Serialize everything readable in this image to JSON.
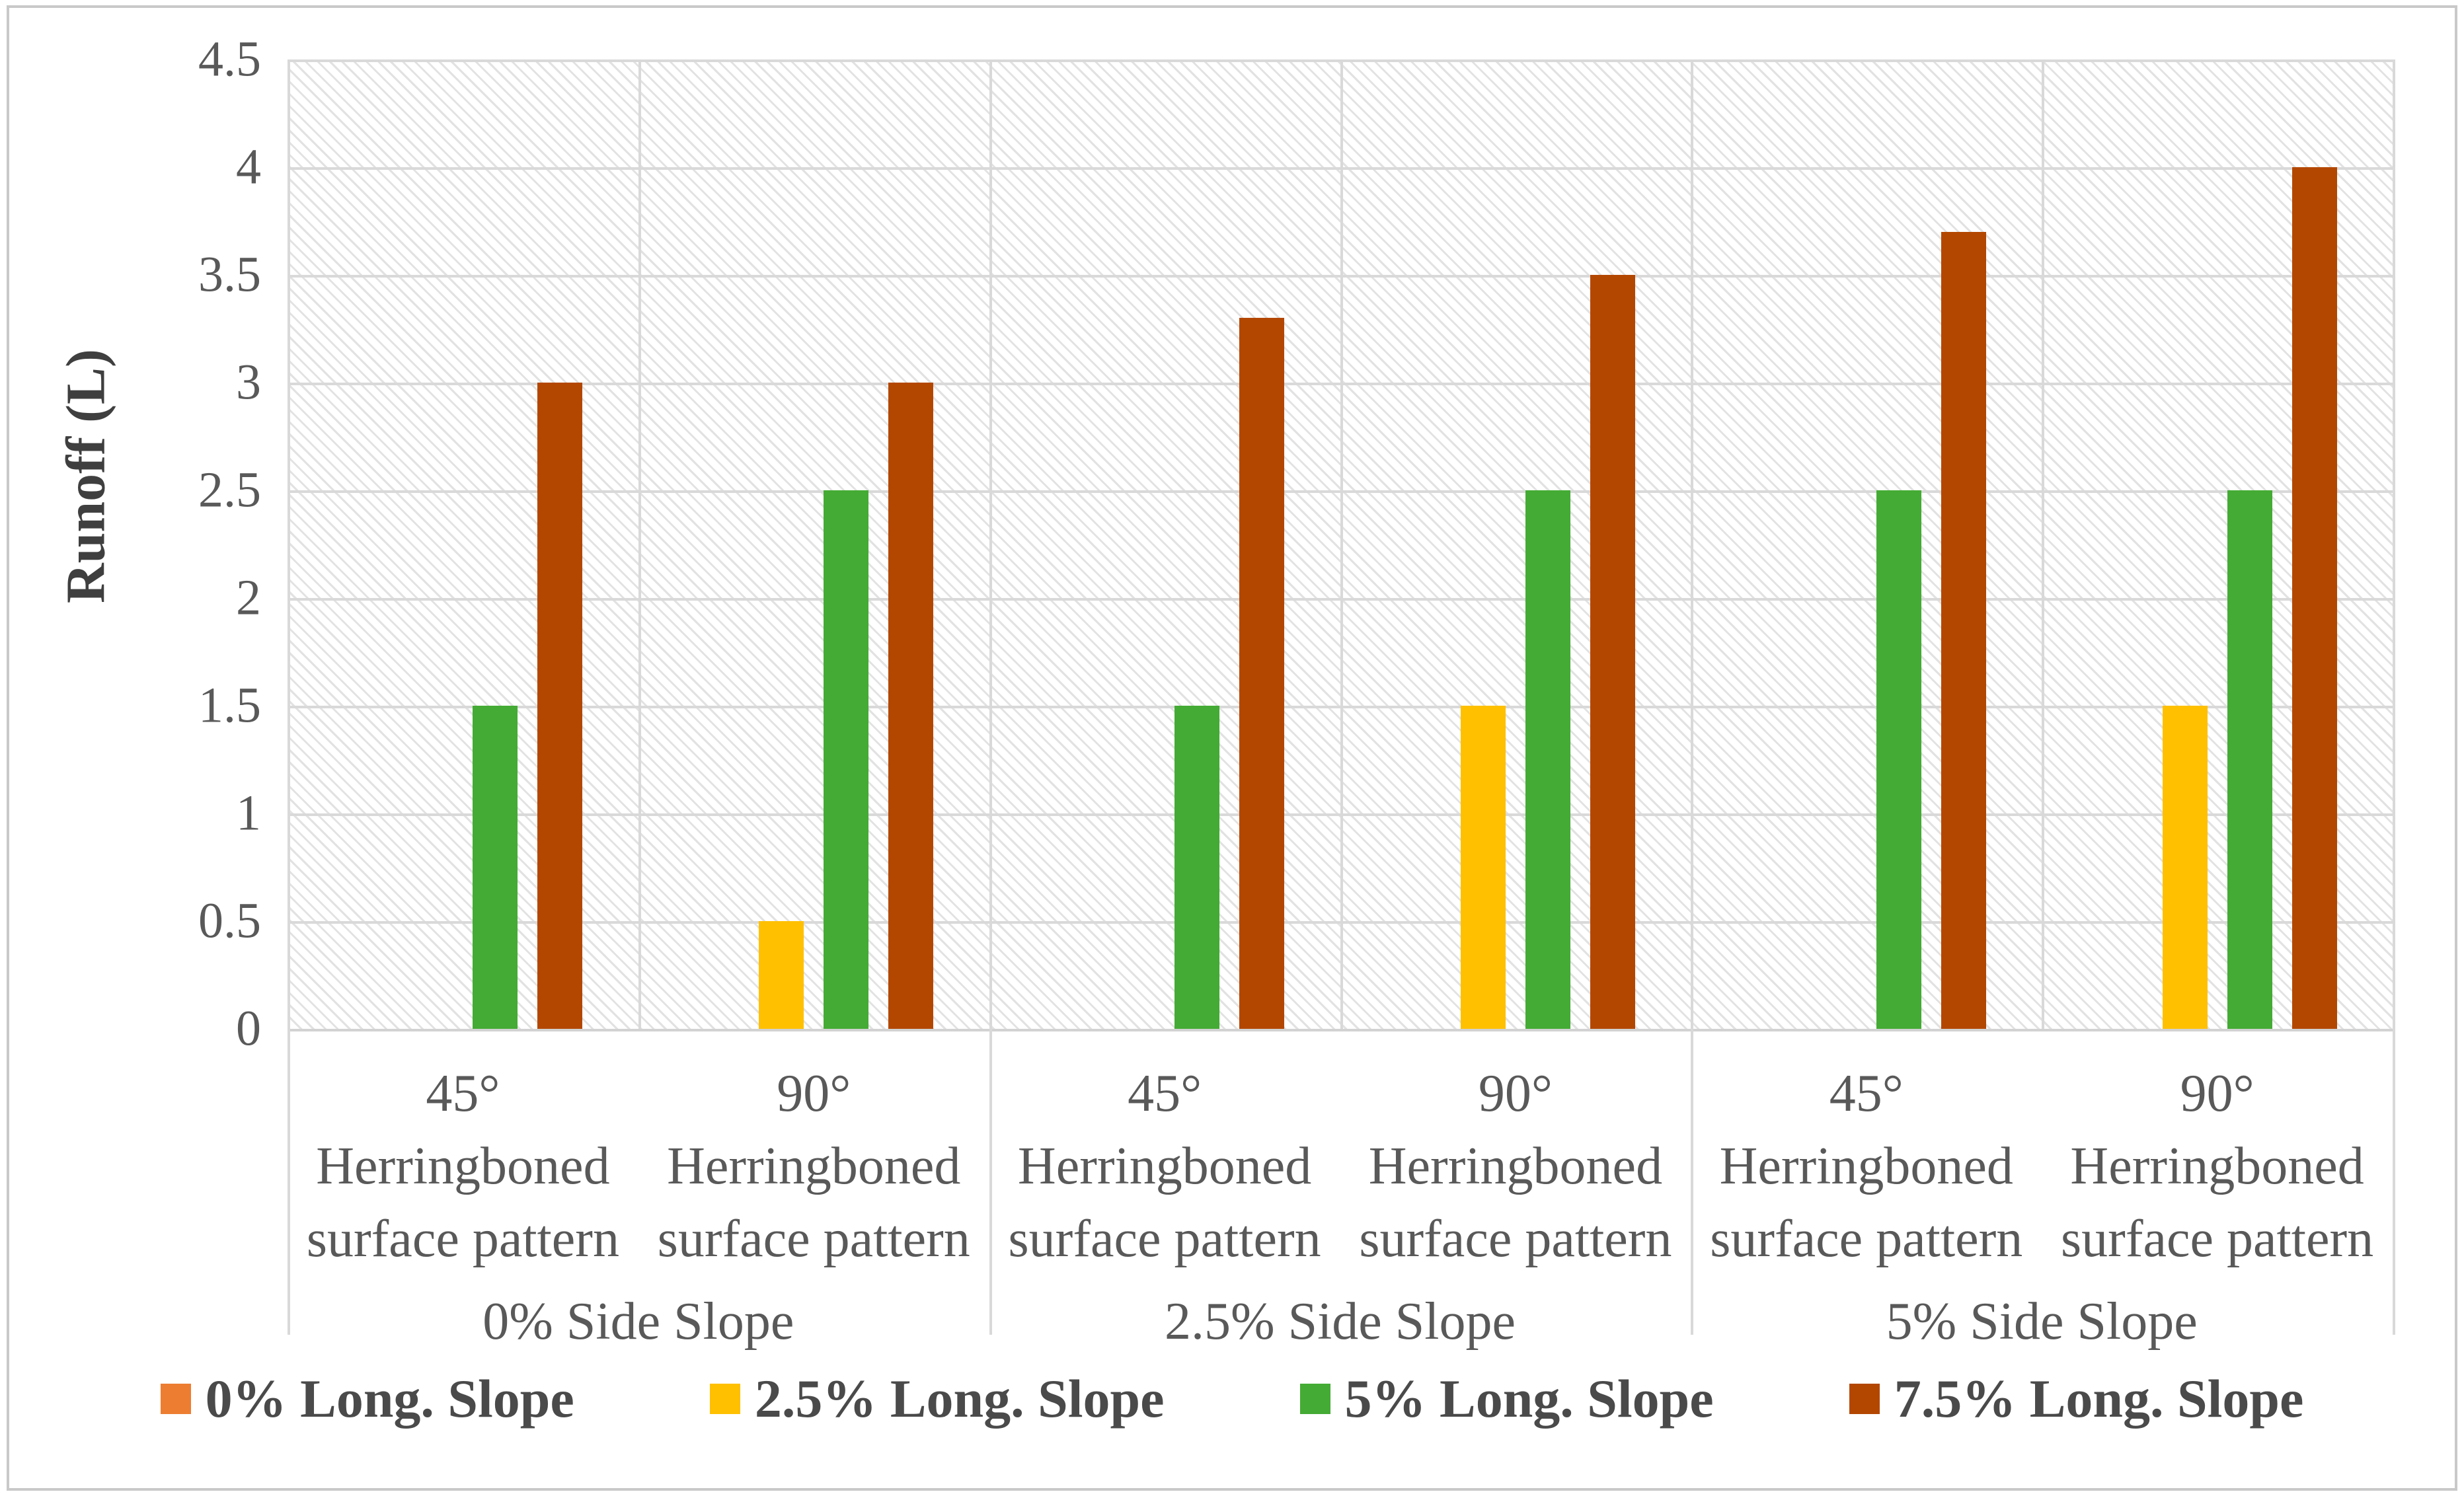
{
  "chart_data": {
    "type": "bar",
    "title": "",
    "y_axis": {
      "title": "Runoff (L)",
      "min": 0,
      "max": 4.5,
      "step": 0.5,
      "ticks": [
        "4.5",
        "4",
        "3.5",
        "3",
        "2.5",
        "2",
        "1.5",
        "1",
        "0.5",
        "0"
      ]
    },
    "x_axis": {
      "groups": [
        {
          "angle": "45°",
          "line2": "Herringboned",
          "line3": "surface pattern"
        },
        {
          "angle": "90°",
          "line2": "Herringboned",
          "line3": "surface pattern"
        },
        {
          "angle": "45°",
          "line2": "Herringboned",
          "line3": "surface pattern"
        },
        {
          "angle": "90°",
          "line2": "Herringboned",
          "line3": "surface pattern"
        },
        {
          "angle": "45°",
          "line2": "Herringboned",
          "line3": "surface pattern"
        },
        {
          "angle": "90°",
          "line2": "Herringboned",
          "line3": "surface pattern"
        }
      ],
      "sections": [
        "0% Side Slope",
        "2.5% Side Slope",
        "5% Side Slope"
      ]
    },
    "series": [
      {
        "name": "0% Long. Slope",
        "color": "#ED7D31",
        "values": [
          0,
          0,
          0,
          0,
          0,
          0
        ]
      },
      {
        "name": "2.5% Long. Slope",
        "color": "#FFC000",
        "values": [
          0,
          0.5,
          0,
          1.5,
          0,
          1.5
        ]
      },
      {
        "name": "5% Long. Slope",
        "color": "#44AB34",
        "values": [
          1.5,
          2.5,
          1.5,
          2.5,
          2.5,
          2.5
        ]
      },
      {
        "name": "7.5% Long. Slope",
        "color": "#B34700",
        "values": [
          3,
          3,
          3.3,
          3.5,
          3.7,
          4
        ]
      }
    ],
    "legend_position": "bottom",
    "grid": true,
    "background_pattern": "light-downward-diagonal-hatch"
  },
  "colors": {
    "gridline": "#d9d9d9",
    "axis_text": "#595959",
    "legend_text": "#4a4a4a",
    "figure_border": "#c9c9c9"
  }
}
